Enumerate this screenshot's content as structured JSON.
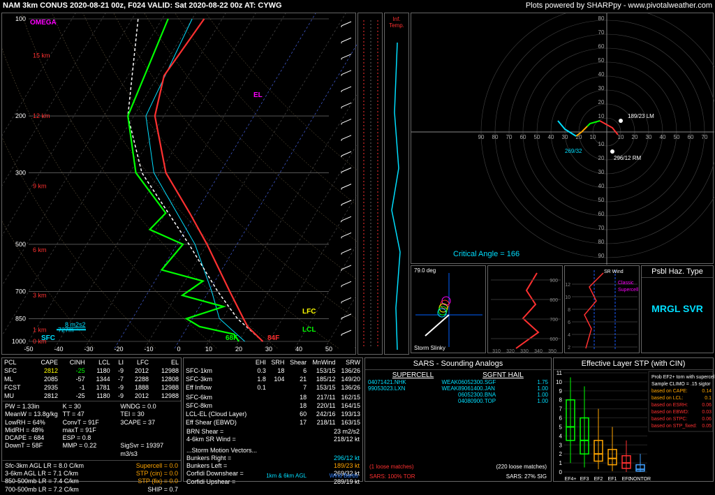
{
  "header": {
    "left": "NAM 3km CONUS 2020-08-21 00z, F024  VALID: Sat 2020-08-22 00z  AT: CYWG",
    "right": "Plots powered by SHARPpy - www.pivotalweather.com"
  },
  "skewt": {
    "plim_hpa": [
      1000,
      100
    ],
    "pticks": [
      1000,
      850,
      700,
      500,
      300,
      200,
      100
    ],
    "xticks": [
      -50,
      -40,
      -30,
      -20,
      -10,
      0,
      10,
      20,
      30,
      40,
      50
    ],
    "height_labels": [
      {
        "p": 1000,
        "t": "0 km",
        "c": "#ff3030"
      },
      {
        "p": 920,
        "t": "1 km",
        "c": "#ff3030"
      },
      {
        "p": 920,
        "t2": "727m",
        "c2": "#00dfff"
      },
      {
        "p": 720,
        "t": "3 km",
        "c": "#ff3030"
      },
      {
        "p": 520,
        "t": "6 km",
        "c": "#ff3030"
      },
      {
        "p": 330,
        "t": "9 km",
        "c": "#ff3030"
      },
      {
        "p": 200,
        "t": "12 km",
        "c": "#ff3030"
      },
      {
        "p": 130,
        "t": "15 km",
        "c": "#ff3030"
      }
    ],
    "markers": {
      "sfc_td": "68F",
      "sfc_t": "84F",
      "lcl": "LCL",
      "lfc": "LFC",
      "el": "EL",
      "omega": "OMEGA",
      "sfc": "SFC"
    },
    "cape_box": "8 m2s2",
    "temp_profile": [
      {
        "p": 1000,
        "t": 28
      },
      {
        "p": 900,
        "t": 20
      },
      {
        "p": 850,
        "t": 17
      },
      {
        "p": 700,
        "t": 7
      },
      {
        "p": 500,
        "t": -10
      },
      {
        "p": 400,
        "t": -22
      },
      {
        "p": 300,
        "t": -38
      },
      {
        "p": 200,
        "t": -53
      },
      {
        "p": 150,
        "t": -58
      },
      {
        "p": 100,
        "t": -56
      }
    ],
    "dew_profile": [
      {
        "p": 1000,
        "t": 20
      },
      {
        "p": 950,
        "t": 17
      },
      {
        "p": 900,
        "t": 4
      },
      {
        "p": 850,
        "t": -2
      },
      {
        "p": 780,
        "t": 8
      },
      {
        "p": 720,
        "t": -8
      },
      {
        "p": 650,
        "t": -4
      },
      {
        "p": 600,
        "t": -20
      },
      {
        "p": 500,
        "t": -18
      },
      {
        "p": 450,
        "t": -32
      },
      {
        "p": 400,
        "t": -30
      },
      {
        "p": 300,
        "t": -48
      },
      {
        "p": 200,
        "t": -62
      },
      {
        "p": 100,
        "t": -68
      }
    ],
    "parcel_profile": [
      {
        "p": 1000,
        "t": 28
      },
      {
        "p": 850,
        "t": 15
      },
      {
        "p": 700,
        "t": 3
      },
      {
        "p": 500,
        "t": -16
      },
      {
        "p": 300,
        "t": -46
      },
      {
        "p": 200,
        "t": -62
      },
      {
        "p": 100,
        "t": -78
      }
    ],
    "wetbulb_profile": [
      {
        "p": 1000,
        "t": 22
      },
      {
        "p": 850,
        "t": 9
      },
      {
        "p": 700,
        "t": 1
      },
      {
        "p": 500,
        "t": -14
      },
      {
        "p": 300,
        "t": -42
      },
      {
        "p": 200,
        "t": -56
      },
      {
        "p": 100,
        "t": -60
      }
    ],
    "colors": {
      "temp": "#ff3030",
      "dew": "#00ff00",
      "parcel": "#ffffff",
      "wetbulb": "#00dfff",
      "grid": "#555",
      "adiabat": "#888",
      "bg": "#000"
    }
  },
  "hodo": {
    "rings": [
      10,
      20,
      30,
      40,
      50,
      60,
      70,
      80,
      90
    ],
    "crit_angle": "Critical Angle = 166",
    "storm_motions": {
      "rm": "296/12 RM",
      "lm": "189/23 LM",
      "mn": "269/32"
    },
    "segments": [
      {
        "pts": [
          [
            8,
            -2
          ],
          [
            4,
            3
          ],
          [
            -5,
            8
          ]
        ],
        "c": "#ff3030"
      },
      {
        "pts": [
          [
            -5,
            8
          ],
          [
            -12,
            6
          ],
          [
            -14,
            4
          ]
        ],
        "c": "#00ff00"
      },
      {
        "pts": [
          [
            -14,
            4
          ],
          [
            -18,
            0
          ],
          [
            -22,
            -3
          ]
        ],
        "c": "#ffa500"
      },
      {
        "pts": [
          [
            -22,
            -3
          ],
          [
            -30,
            2
          ],
          [
            -35,
            8
          ]
        ],
        "c": "#00dfff"
      }
    ],
    "ring_color": "#444",
    "axis_color": "#888",
    "bg": "#000"
  },
  "slinky": {
    "label": "Storm Slinky",
    "angle": "79.0 deg"
  },
  "theta": {
    "xticks": [
      "310",
      "320",
      "330",
      "340",
      "350"
    ],
    "yticks": [
      "900",
      "800",
      "700",
      "600"
    ]
  },
  "srw": {
    "title": "SR Wind",
    "xlabel": "vs Height",
    "yticks": [
      "2",
      "4",
      "6",
      "8",
      "10",
      "12"
    ],
    "classic": "Classic",
    "supercell": "Supercell"
  },
  "haz": {
    "title": "Psbl Haz. Type",
    "value": "MRGL SVR"
  },
  "parcel_table": {
    "cols": [
      "PCL",
      "CAPE",
      "CINH",
      "LCL",
      "LI",
      "LFC",
      "EL"
    ],
    "rows": [
      [
        "SFC",
        "2812",
        "-25",
        "1180",
        "-9",
        "2012",
        "12988"
      ],
      [
        "ML",
        "2085",
        "-57",
        "1344",
        "-7",
        "2288",
        "12808"
      ],
      [
        "FCST",
        "2935",
        "-1",
        "1781",
        "-9",
        "1888",
        "12988"
      ],
      [
        "MU",
        "2812",
        "-25",
        "1180",
        "-9",
        "2012",
        "12988"
      ]
    ],
    "highlight_row": 0
  },
  "thermo": {
    "pw": "PW = 1.33in",
    "k": "K = 30",
    "wndg": "WNDG = 0.0",
    "meanw": "MeanW = 13.8g/kg",
    "tt": "TT = 47",
    "tei": "TEI = 30",
    "lowrh": "LowRH = 64%",
    "convt": "ConvT = 91F",
    "cape3": "3CAPE = 37",
    "midrh": "MidRH = 48%",
    "maxt": "maxT = 91F",
    "dcape": "DCAPE = 684",
    "esp": "ESP = 0.8",
    "downt": "DownT = 58F",
    "mmp": "MMP = 0.22",
    "sigsvr": "SigSvr = 19397 m3/s3"
  },
  "lapse": {
    "l1": "Sfc-3km AGL LR = 8.0 C/km",
    "l2": "3-6km AGL LR = 7.1 C/km",
    "l3": "850-500mb LR = 7.4 C/km",
    "l4": "700-500mb LR = 7.2 C/km",
    "supercell": "Supercell = 0.0",
    "stpcin": "STP (cin) = 0.0",
    "stpfix": "STP (fix) = 0.0",
    "ship": "SHIP = 0.7"
  },
  "kinematics": {
    "cols": [
      "",
      "EHI",
      "SRH",
      "Shear",
      "MnWind",
      "SRW"
    ],
    "rows": [
      [
        "SFC-1km",
        "0.3",
        "18",
        "6",
        "153/15",
        "136/26"
      ],
      [
        "SFC-3km",
        "1.8",
        "104",
        "21",
        "185/12",
        "149/20"
      ],
      [
        "Eff Inflow",
        "0.1",
        "",
        "7",
        "153/15",
        "136/26"
      ],
      [
        "",
        "",
        "",
        "",
        "",
        ""
      ],
      [
        "SFC-6km",
        "",
        "",
        "18",
        "217/11",
        "162/15"
      ],
      [
        "SFC-8km",
        "",
        "",
        "18",
        "220/11",
        "164/15"
      ],
      [
        "LCL-EL (Cloud Layer)",
        "",
        "",
        "60",
        "242/16",
        "193/13"
      ],
      [
        "Eff Shear (EBWD)",
        "",
        "",
        "17",
        "218/11",
        "163/15"
      ]
    ],
    "brn": "BRN Shear =",
    "brn_v": "23 m2/s2",
    "srwind": "4-6km SR Wind =",
    "srwind_v": "218/12 kt",
    "motion_title": "...Storm Motion Vectors...",
    "br": "Bunkers Right =",
    "br_v": "296/12 kt",
    "bl": "Bunkers Left =",
    "bl_v": "189/23 kt",
    "cd": "Corfidi Downshear =",
    "cd_v": "269/32 kt",
    "cu": "Corfidi Upshear =",
    "cu_v": "289/19 kt",
    "legend1": "1km & 6km AGL",
    "legend2": "Wind Barbs"
  },
  "sars": {
    "title": "SARS - Sounding Analogs",
    "supercell_h": "SUPERCELL",
    "hail_h": "SGFNT HAIL",
    "supercell": [
      {
        "id": "04071421.NHK",
        "tag": "WEAK"
      },
      {
        "id": "99053023.LXN",
        "tag": "WEAK"
      }
    ],
    "hail": [
      {
        "id": "06052300.SGF",
        "v": "1.75"
      },
      {
        "id": "89061400.JAN",
        "v": "1.00"
      },
      {
        "id": "06052300.BNA",
        "v": "1.00"
      },
      {
        "id": "04080900.TOP",
        "v": "1.00"
      }
    ],
    "sc_loose": "(1 loose matches)",
    "hail_loose": "(220 loose matches)",
    "sc_pct": "SARS: 100% TOR",
    "hail_pct": "SARS: 27% SIG"
  },
  "stp": {
    "title": "Effective Layer STP (with CIN)",
    "yticks": [
      "0",
      "1",
      "2",
      "3",
      "4",
      "5",
      "6",
      "7",
      "8",
      "9",
      "10",
      "11"
    ],
    "cats": [
      "EF4+",
      "EF3",
      "EF2",
      "EF1",
      "EF0",
      "NONTOR"
    ],
    "boxes": [
      {
        "lo": 1.0,
        "q1": 3.5,
        "med": 5.0,
        "q3": 8.0,
        "hi": 10.5,
        "c": "#00ff00"
      },
      {
        "lo": 0.5,
        "q1": 2.0,
        "med": 3.5,
        "q3": 6.0,
        "hi": 9.5,
        "c": "#00ff00"
      },
      {
        "lo": 0.3,
        "q1": 1.2,
        "med": 2.0,
        "q3": 3.5,
        "hi": 7.0,
        "c": "#ffa500"
      },
      {
        "lo": 0.1,
        "q1": 0.8,
        "med": 1.5,
        "q3": 2.5,
        "hi": 5.0,
        "c": "#ffa500"
      },
      {
        "lo": 0.0,
        "q1": 0.4,
        "med": 1.0,
        "q3": 1.8,
        "hi": 3.5,
        "c": "#ff3030"
      },
      {
        "lo": 0.0,
        "q1": 0.1,
        "med": 0.3,
        "q3": 0.8,
        "hi": 2.0,
        "c": "#40a0ff"
      }
    ],
    "info": [
      {
        "t": "Prob EF2+ torn with supercell",
        "c": "#fff"
      },
      {
        "t": "Sample CLIMO = .15 sigtor",
        "c": "#fff"
      },
      {
        "t": "based on CAPE:",
        "v": "0.14",
        "c": "#ffa500"
      },
      {
        "t": "based on LCL:",
        "v": "0.1",
        "c": "#ffa500"
      },
      {
        "t": "based on ESRH:",
        "v": "0.06",
        "c": "#ff3030"
      },
      {
        "t": "based on EBWD:",
        "v": "0.03",
        "c": "#ff3030"
      },
      {
        "t": "based on STPC:",
        "v": "0.06",
        "c": "#ff3030"
      },
      {
        "t": "based on STP_fixed:",
        "v": "0.05",
        "c": "#ff3030"
      }
    ]
  },
  "side2_label": "Inf. Temp."
}
